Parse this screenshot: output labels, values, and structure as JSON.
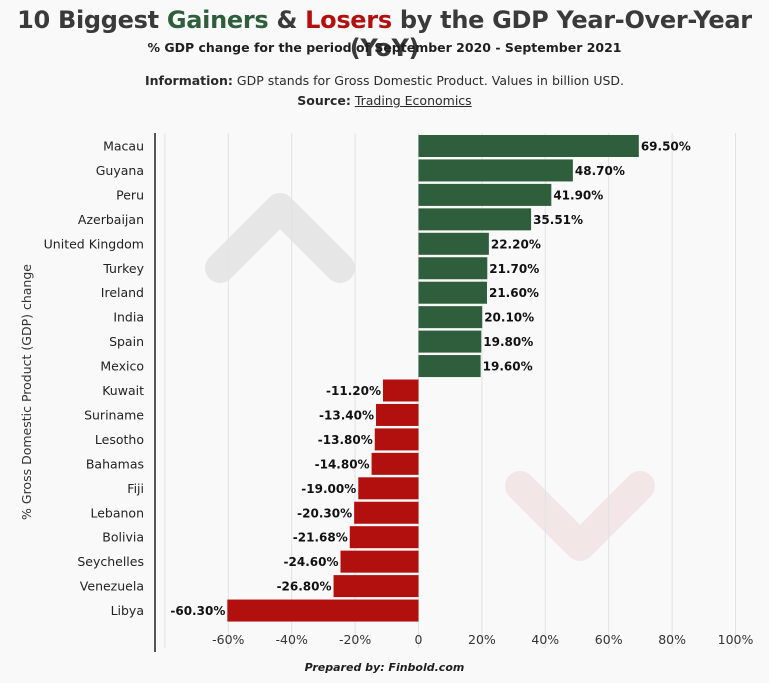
{
  "header": {
    "title_prefix": "10 Biggest ",
    "title_gainers": "Gainers",
    "title_amp": " & ",
    "title_losers": "Losers",
    "title_suffix": " by the GDP Year-Over-Year (YoY)",
    "subtitle": "% GDP change for the period of September 2020 - September 2021",
    "info_label": "Information:",
    "info_text": " GDP stands for Gross Domestic Product. Values in billion USD.",
    "source_label": "Source:",
    "source_link": "Trading Economics"
  },
  "footer": {
    "text": "Prepared by: Finbold.com"
  },
  "colors": {
    "gainer": "#2f5e3c",
    "loser": "#b20f0f",
    "title_gainers": "#2f5e3c",
    "title_losers": "#b20f0f"
  },
  "chart_data": {
    "type": "bar",
    "orientation": "horizontal",
    "ylabel": "% Gross Domestic Product (GDP) change",
    "xlim": [
      -80,
      100
    ],
    "x_ticks": [
      -60,
      -40,
      -20,
      0,
      20,
      40,
      60,
      80,
      100
    ],
    "x_tick_labels": [
      "-60%",
      "-40%",
      "-20%",
      "0",
      "20%",
      "40%",
      "60%",
      "80%",
      "100%"
    ],
    "grid": true,
    "categories": [
      "Macau",
      "Guyana",
      "Peru",
      "Azerbaijan",
      "United Kingdom",
      "Turkey",
      "Ireland",
      "India",
      "Spain",
      "Mexico",
      "Kuwait",
      "Suriname",
      "Lesotho",
      "Bahamas",
      "Fiji",
      "Lebanon",
      "Bolivia",
      "Seychelles",
      "Venezuela",
      "Libya"
    ],
    "values": [
      69.5,
      48.7,
      41.9,
      35.51,
      22.2,
      21.7,
      21.6,
      20.1,
      19.8,
      19.6,
      -11.2,
      -13.4,
      -13.8,
      -14.8,
      -19.0,
      -20.3,
      -21.68,
      -24.6,
      -26.8,
      -60.3
    ],
    "data_labels": [
      "69.50%",
      "48.70%",
      "41.90%",
      "35.51%",
      "22.20%",
      "21.70%",
      "21.60%",
      "20.10%",
      "19.80%",
      "19.60%",
      "-11.20%",
      "-13.40%",
      "-13.80%",
      "-14.80%",
      "-19.00%",
      "-20.30%",
      "-21.68%",
      "-24.60%",
      "-26.80%",
      "-60.30%"
    ]
  }
}
